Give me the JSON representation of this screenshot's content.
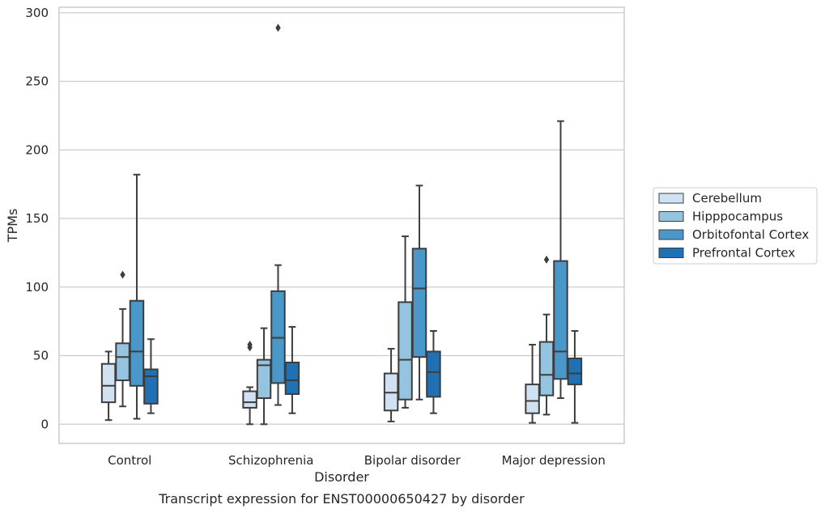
{
  "chart_data": {
    "type": "box",
    "title": "",
    "caption": "Transcript expression for ENST00000650427 by disorder",
    "xlabel": "Disorder",
    "ylabel": "TPMs",
    "ylim": [
      -14,
      304
    ],
    "yticks": [
      0,
      50,
      100,
      150,
      200,
      250,
      300
    ],
    "grid": "horizontal",
    "legend_position": "right",
    "categories": [
      "Control",
      "Schizophrenia",
      "Bipolar disorder",
      "Major depression"
    ],
    "series": [
      {
        "name": "Cerebellum",
        "color": "#d0e1f2",
        "boxes": [
          {
            "whisker_low": 3,
            "q1": 16,
            "median": 28,
            "q3": 44,
            "whisker_high": 53,
            "outliers": []
          },
          {
            "whisker_low": 0,
            "q1": 12,
            "median": 16,
            "q3": 24,
            "whisker_high": 27,
            "outliers": [
              56,
              58
            ]
          },
          {
            "whisker_low": 2,
            "q1": 10,
            "median": 23,
            "q3": 37,
            "whisker_high": 55,
            "outliers": []
          },
          {
            "whisker_low": 1,
            "q1": 8,
            "median": 17,
            "q3": 29,
            "whisker_high": 58,
            "outliers": []
          }
        ]
      },
      {
        "name": "Hipppocampus",
        "color": "#94c4df",
        "boxes": [
          {
            "whisker_low": 13,
            "q1": 32,
            "median": 49,
            "q3": 59,
            "whisker_high": 84,
            "outliers": [
              109
            ]
          },
          {
            "whisker_low": 0,
            "q1": 19,
            "median": 43,
            "q3": 47,
            "whisker_high": 70,
            "outliers": []
          },
          {
            "whisker_low": 12,
            "q1": 18,
            "median": 47,
            "q3": 89,
            "whisker_high": 137,
            "outliers": []
          },
          {
            "whisker_low": 7,
            "q1": 21,
            "median": 36,
            "q3": 60,
            "whisker_high": 80,
            "outliers": [
              120
            ]
          }
        ]
      },
      {
        "name": "Orbitofontal Cortex",
        "color": "#4a98c9",
        "boxes": [
          {
            "whisker_low": 4,
            "q1": 28,
            "median": 53,
            "q3": 90,
            "whisker_high": 182,
            "outliers": []
          },
          {
            "whisker_low": 14,
            "q1": 30,
            "median": 63,
            "q3": 97,
            "whisker_high": 116,
            "outliers": [
              289
            ]
          },
          {
            "whisker_low": 18,
            "q1": 49,
            "median": 99,
            "q3": 128,
            "whisker_high": 174,
            "outliers": []
          },
          {
            "whisker_low": 19,
            "q1": 33,
            "median": 53,
            "q3": 119,
            "whisker_high": 221,
            "outliers": []
          }
        ]
      },
      {
        "name": "Prefrontal Cortex",
        "color": "#2070b4",
        "boxes": [
          {
            "whisker_low": 8,
            "q1": 15,
            "median": 35,
            "q3": 40,
            "whisker_high": 62,
            "outliers": []
          },
          {
            "whisker_low": 8,
            "q1": 22,
            "median": 32,
            "q3": 45,
            "whisker_high": 71,
            "outliers": []
          },
          {
            "whisker_low": 8,
            "q1": 20,
            "median": 38,
            "q3": 53,
            "whisker_high": 68,
            "outliers": []
          },
          {
            "whisker_low": 1,
            "q1": 29,
            "median": 37,
            "q3": 48,
            "whisker_high": 68,
            "outliers": []
          }
        ]
      }
    ]
  }
}
